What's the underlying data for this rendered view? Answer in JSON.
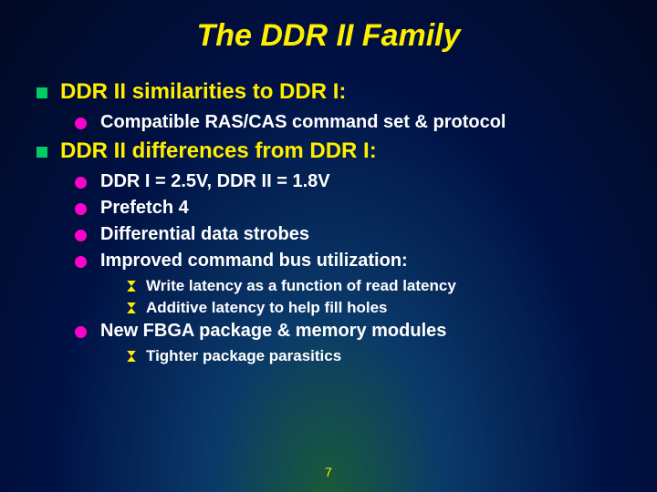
{
  "title": "The DDR II Family",
  "sections": [
    {
      "heading": "DDR II similarities to DDR I:",
      "items": [
        {
          "text": "Compatible RAS/CAS command set & protocol"
        }
      ]
    },
    {
      "heading": "DDR II differences from DDR I:",
      "items": [
        {
          "text": "DDR I = 2.5V, DDR II = 1.8V"
        },
        {
          "text": "Prefetch 4"
        },
        {
          "text": "Differential data strobes"
        },
        {
          "text": "Improved command bus utilization:",
          "sub": [
            "Write latency as a function of read latency",
            "Additive latency to help fill holes"
          ]
        },
        {
          "text": "New FBGA package & memory modules",
          "sub": [
            "Tighter package parasitics"
          ]
        }
      ]
    }
  ],
  "page_number": "7",
  "colors": {
    "title_color": "#ffee00",
    "level1_color": "#ffee00",
    "body_color": "#ffffff",
    "bullet_square": "#00cc66",
    "bullet_circle": "#ff00cc",
    "bullet_diamond": "#ffee00"
  }
}
